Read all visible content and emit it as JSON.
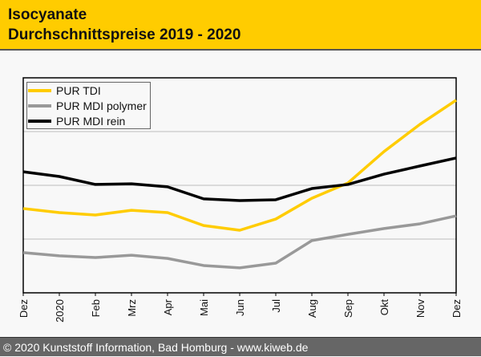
{
  "header": {
    "title_line1": "Isocyanate",
    "title_line2": "Durchschnittspreise 2019 - 2020"
  },
  "footer": {
    "text": "© 2020 Kunststoff Information, Bad Homburg - www.kiweb.de"
  },
  "chart_data": {
    "type": "line",
    "title": "Isocyanate Durchschnittspreise 2019 - 2020",
    "xlabel": "",
    "ylabel": "",
    "categories": [
      "Dez",
      "2020",
      "Feb",
      "Mrz",
      "Apr",
      "Mai",
      "Jun",
      "Jul",
      "Aug",
      "Sep",
      "Okt",
      "Nov",
      "Dez"
    ],
    "ylim": [
      0,
      100
    ],
    "grid": true,
    "legend": "top-left",
    "series": [
      {
        "name": "PUR TDI",
        "color": "#ffcc00",
        "values": [
          39.2,
          37.3,
          36.2,
          38.4,
          37.3,
          31.3,
          29.1,
          34.3,
          44.0,
          51.1,
          65.7,
          78.4,
          89.6
        ]
      },
      {
        "name": "PUR MDI polymer",
        "color": "#999999",
        "values": [
          18.7,
          17.2,
          16.4,
          17.5,
          16.0,
          12.7,
          11.6,
          13.8,
          24.3,
          27.2,
          29.9,
          32.1,
          35.8
        ]
      },
      {
        "name": "PUR MDI rein",
        "color": "#000000",
        "values": [
          56.3,
          54.1,
          50.4,
          50.7,
          49.3,
          43.7,
          42.9,
          43.3,
          48.5,
          50.4,
          55.2,
          59.0,
          62.7
        ]
      }
    ]
  }
}
